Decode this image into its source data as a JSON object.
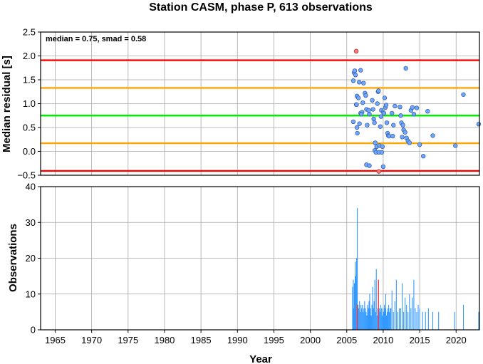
{
  "title": "Station CASM, phase P, 613 observations",
  "annotation": "median = 0.75, smad = 0.58",
  "chart_data": [
    {
      "type": "scatter",
      "ylabel": "Median residual [s]",
      "xlim": [
        1963.0,
        2023.2
      ],
      "ylim": [
        -0.5,
        2.5
      ],
      "yticks": [
        -0.5,
        0.0,
        0.5,
        1.0,
        1.5,
        2.0,
        2.5
      ],
      "ytick_labels": [
        "−0.5",
        "0.0",
        "0.5",
        "1.0",
        "1.5",
        "2.0",
        "2.5"
      ],
      "grid": true,
      "reference_lines": [
        {
          "y": 1.91,
          "color": "#ff0000"
        },
        {
          "y": 1.33,
          "color": "#ffa500"
        },
        {
          "y": 0.75,
          "color": "#00ee00"
        },
        {
          "y": 0.17,
          "color": "#ffa500"
        },
        {
          "y": -0.41,
          "color": "#ff0000"
        }
      ],
      "point_color": "#6fa8ff",
      "outlier_color": "#ff7777",
      "points": [
        [
          2005.9,
          1.48
        ],
        [
          2006.0,
          1.65
        ],
        [
          2006.1,
          1.69
        ],
        [
          2006.2,
          1.6
        ],
        [
          2006.3,
          0.98
        ],
        [
          2006.35,
          0.98
        ],
        [
          2006.4,
          1.16
        ],
        [
          2005.9,
          0.62
        ],
        [
          2006.4,
          0.5
        ],
        [
          2006.45,
          0.38
        ],
        [
          2006.6,
          1.12
        ],
        [
          2006.9,
          1.7
        ],
        [
          2006.7,
          1.45
        ],
        [
          2006.75,
          0.58
        ],
        [
          2006.9,
          0.8
        ],
        [
          2007.1,
          0.82
        ],
        [
          2007.0,
          0.78
        ],
        [
          2007.2,
          1.02
        ],
        [
          2007.3,
          1.43
        ],
        [
          2007.5,
          1.22
        ],
        [
          2007.6,
          1.17
        ],
        [
          2007.7,
          0.88
        ],
        [
          2008.0,
          0.86
        ],
        [
          2008.1,
          0.78
        ],
        [
          2007.8,
          0.55
        ],
        [
          2007.7,
          -0.28
        ],
        [
          2008.1,
          -0.3
        ],
        [
          2008.5,
          1.07
        ],
        [
          2008.6,
          0.88
        ],
        [
          2008.7,
          0.68
        ],
        [
          2008.8,
          0.6
        ],
        [
          2008.9,
          0.18
        ],
        [
          2008.85,
          0.02
        ],
        [
          2009.0,
          -0.02
        ],
        [
          2009.1,
          0.1
        ],
        [
          2009.2,
          1.0
        ],
        [
          2009.3,
          1.25
        ],
        [
          2009.35,
          1.27
        ],
        [
          2009.4,
          -0.02
        ],
        [
          2009.5,
          0.12
        ],
        [
          2009.6,
          0.52
        ],
        [
          2009.7,
          0.73
        ],
        [
          2009.75,
          0.86
        ],
        [
          2009.8,
          -0.02
        ],
        [
          2009.9,
          0.1
        ],
        [
          2010.0,
          0.82
        ],
        [
          2010.1,
          0.8
        ],
        [
          2010.2,
          1.12
        ],
        [
          2010.3,
          0.92
        ],
        [
          2010.4,
          0.97
        ],
        [
          2010.5,
          0.6
        ],
        [
          2010.6,
          0.38
        ],
        [
          2010.7,
          0.33
        ],
        [
          2010.8,
          0.32
        ],
        [
          2010.0,
          -0.32
        ],
        [
          2011.2,
          0.8
        ],
        [
          2011.3,
          0.32
        ],
        [
          2011.4,
          0.55
        ],
        [
          2011.6,
          0.95
        ],
        [
          2012.3,
          0.93
        ],
        [
          2012.4,
          0.75
        ],
        [
          2012.5,
          0.6
        ],
        [
          2012.6,
          0.3
        ],
        [
          2012.7,
          0.55
        ],
        [
          2012.8,
          0.45
        ],
        [
          2013.0,
          0.4
        ],
        [
          2013.2,
          0.28
        ],
        [
          2013.4,
          0.22
        ],
        [
          2013.6,
          0.18
        ],
        [
          2013.8,
          0.86
        ],
        [
          2014.0,
          0.92
        ],
        [
          2014.2,
          0.78
        ],
        [
          2014.6,
          0.91
        ],
        [
          2015.0,
          0.14
        ],
        [
          2015.5,
          -0.1
        ],
        [
          2013.1,
          1.74
        ],
        [
          2016.1,
          0.84
        ],
        [
          2016.8,
          0.33
        ],
        [
          2019.9,
          0.12
        ],
        [
          2021.0,
          1.19
        ],
        [
          2023.1,
          0.57
        ]
      ],
      "outliers": [
        [
          2006.3,
          2.1
        ],
        [
          2009.4,
          -0.42
        ]
      ]
    },
    {
      "type": "bar",
      "ylabel": "Observations",
      "xlabel": "Year",
      "xlim": [
        1963.0,
        2023.2
      ],
      "ylim": [
        0,
        40
      ],
      "yticks": [
        0,
        10,
        20,
        30,
        40
      ],
      "xticks": [
        1965,
        1970,
        1975,
        1980,
        1985,
        1990,
        1995,
        2000,
        2005,
        2010,
        2015,
        2020
      ],
      "grid": true,
      "bar_color": "#3399ff",
      "highlight_color": "#ff3333",
      "series": [
        {
          "x": [
            2005.8,
            2005.9,
            2006.0,
            2006.05,
            2006.15,
            2006.25,
            2006.35,
            2006.45,
            2006.55,
            2006.65,
            2006.75,
            2006.85,
            2006.95,
            2007.05,
            2007.15,
            2007.25,
            2007.35,
            2007.45,
            2007.55,
            2007.65,
            2007.75,
            2007.85,
            2007.95,
            2008.05,
            2008.15,
            2008.25,
            2008.35,
            2008.45,
            2008.55,
            2008.65,
            2008.75,
            2008.85,
            2008.95,
            2009.05,
            2009.15,
            2009.25,
            2009.35,
            2009.45,
            2009.55,
            2009.65,
            2009.75,
            2009.85,
            2009.95,
            2010.05,
            2010.15,
            2010.25,
            2010.35,
            2010.45,
            2010.55,
            2010.65,
            2010.75,
            2010.85,
            2010.95,
            2011.05,
            2011.2,
            2011.4,
            2011.6,
            2011.8,
            2012.0,
            2012.2,
            2012.4,
            2012.6,
            2012.8,
            2013.0,
            2013.2,
            2013.4,
            2013.6,
            2013.8,
            2014.0,
            2014.2,
            2014.4,
            2014.6,
            2014.8,
            2015.0,
            2015.4,
            2015.8,
            2016.2,
            2016.8,
            2017.6,
            2019.8,
            2021.0,
            2023.1
          ],
          "values": [
            12,
            14,
            6,
            13,
            19,
            15,
            20,
            34,
            7,
            6,
            8,
            5,
            7,
            6,
            7,
            5,
            6,
            8,
            6,
            5,
            4,
            7,
            6,
            8,
            10,
            6,
            4,
            7,
            12,
            6,
            8,
            14,
            5,
            17,
            4,
            6,
            14,
            6,
            5,
            7,
            6,
            4,
            6,
            5,
            7,
            6,
            10,
            4,
            5,
            6,
            7,
            5,
            6,
            6,
            11,
            5,
            8,
            14,
            5,
            6,
            6,
            13,
            5,
            9,
            7,
            5,
            10,
            6,
            9,
            14,
            6,
            5,
            7,
            6,
            5,
            5,
            6,
            5,
            5,
            5,
            7,
            5
          ]
        },
        {
          "x": [
            2006.45,
            2009.35
          ],
          "values": [
            7,
            14
          ]
        }
      ]
    }
  ]
}
